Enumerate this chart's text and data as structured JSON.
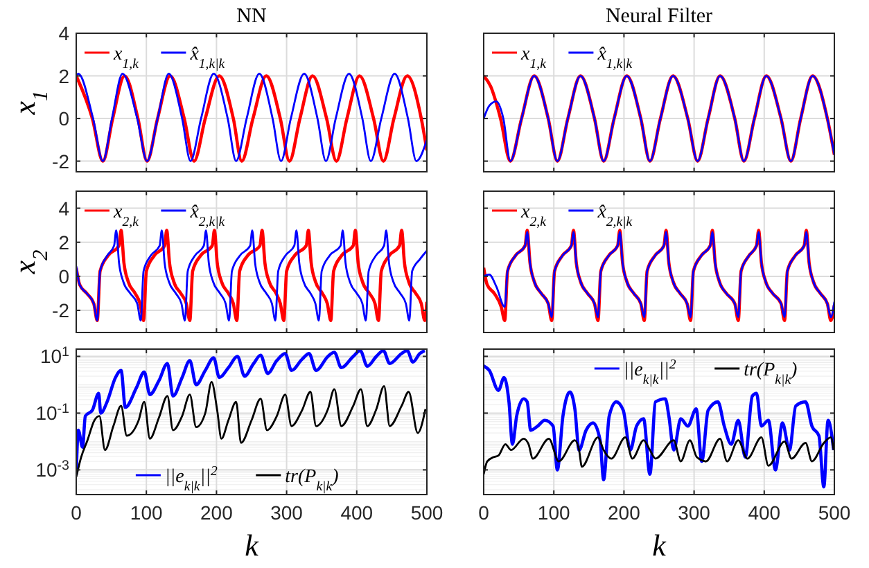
{
  "chart_data": [
    {
      "type": "line",
      "title": "NN",
      "ylabel": "x$_{1}$",
      "xlim": [
        0,
        500
      ],
      "xticks": [
        0,
        100,
        200,
        300,
        400,
        500
      ],
      "ylim": [
        -2.5,
        4
      ],
      "yticks": [
        -2,
        0,
        2,
        4
      ],
      "grid": true,
      "legend": "top left",
      "tick_labels": "y",
      "series": [
        {
          "name": "x$_{1,k}$",
          "color": "#ff0000",
          "x": [
            0,
            23,
            38,
            52,
            69,
            88,
            101,
            116,
            134,
            154,
            168,
            184,
            204,
            224,
            236,
            252,
            271,
            291,
            304,
            319,
            337,
            357,
            371,
            386,
            404,
            424,
            438,
            453,
            472,
            492,
            500
          ],
          "values": [
            2,
            0,
            -2,
            0,
            2,
            0,
            -2,
            0,
            2,
            0,
            -2,
            0,
            2,
            0,
            -2,
            0,
            2,
            0,
            -2,
            0,
            2,
            0,
            -2,
            0,
            2,
            0,
            -2,
            0,
            2,
            0,
            -1.5
          ]
        },
        {
          "name": "x̂$_{1,k|k}$",
          "color": "#0000ff",
          "x": [
            0,
            3,
            24,
            38,
            51,
            66,
            87,
            101,
            116,
            132,
            151,
            163,
            178,
            196,
            216,
            228,
            243,
            261,
            280,
            292,
            306,
            325,
            344,
            356,
            370,
            389,
            408,
            420,
            435,
            454,
            473,
            485,
            500
          ],
          "values": [
            2,
            2.1,
            0,
            -2,
            0,
            2.1,
            0,
            -2,
            0,
            2.1,
            0,
            -2,
            0,
            2.1,
            0,
            -2,
            0,
            2.1,
            0,
            -2,
            0,
            2.1,
            0,
            -2,
            0,
            2.1,
            0,
            -2,
            0,
            2.1,
            0,
            -2,
            -1
          ]
        }
      ]
    },
    {
      "type": "line",
      "title": "Neural Filter",
      "xlim": [
        0,
        500
      ],
      "xticks": [
        0,
        100,
        200,
        300,
        400,
        500
      ],
      "ylim": [
        -2.5,
        4
      ],
      "yticks": [
        -2,
        0,
        2,
        4
      ],
      "grid": true,
      "legend": "top left",
      "tick_labels": false,
      "series": [
        {
          "name": "x$_{1,k}$",
          "color": "#ff0000",
          "x": [
            0,
            10,
            24,
            38,
            54,
            72,
            92,
            105,
            120,
            138,
            158,
            171,
            186,
            204,
            224,
            237,
            252,
            270,
            291,
            305,
            320,
            337,
            358,
            371,
            386,
            403,
            424,
            438,
            452,
            469,
            490,
            500
          ],
          "values": [
            2,
            1.5,
            0,
            -2,
            0,
            2,
            0,
            -2,
            0,
            2,
            0,
            -2,
            0,
            2,
            0,
            -2,
            0,
            2,
            0,
            -2,
            0,
            2,
            0,
            -2,
            0,
            2,
            0,
            -2,
            0,
            2,
            0,
            -1.7
          ]
        },
        {
          "name": "x̂$_{1,k|k}$",
          "color": "#0000ff",
          "x": [
            0,
            8,
            18,
            28,
            38,
            54,
            72,
            92,
            105,
            120,
            138,
            158,
            171,
            186,
            204,
            224,
            237,
            252,
            270,
            291,
            305,
            320,
            337,
            358,
            371,
            386,
            403,
            424,
            438,
            452,
            469,
            490,
            500
          ],
          "values": [
            0,
            0.6,
            0.8,
            0,
            -2,
            0,
            2,
            0,
            -2,
            0,
            2,
            0,
            -2,
            0,
            2,
            0,
            -2,
            0,
            2,
            0,
            -2,
            0,
            2,
            0,
            -2,
            0,
            2,
            0,
            -2,
            0,
            2,
            0,
            -1.7
          ]
        }
      ]
    },
    {
      "type": "line",
      "ylabel": "x$_{2}$",
      "xlim": [
        0,
        500
      ],
      "xticks": [
        0,
        100,
        200,
        300,
        400,
        500
      ],
      "ylim": [
        -3.3,
        5
      ],
      "yticks": [
        -2,
        0,
        2,
        4
      ],
      "grid": true,
      "legend": "top left",
      "tick_labels": "y",
      "series": [
        {
          "name": "x$_{2,k}$",
          "color": "#ff0000",
          "x": [
            0,
            5,
            15,
            25,
            30,
            34,
            45,
            61,
            64,
            68,
            74,
            84,
            91,
            96,
            100,
            111,
            126,
            129,
            133,
            139,
            149,
            157,
            162,
            166,
            177,
            194,
            197,
            201,
            207,
            217,
            224,
            229,
            233,
            244,
            262,
            265,
            269,
            275,
            285,
            291,
            296,
            300,
            311,
            328,
            331,
            335,
            341,
            351,
            358,
            363,
            367,
            378,
            395,
            398,
            402,
            408,
            418,
            426,
            431,
            435,
            446,
            461,
            464,
            468,
            474,
            484,
            492,
            497,
            500
          ],
          "values": [
            0.5,
            -0.5,
            -1,
            -1.6,
            -2.6,
            0.3,
            1.2,
            1.8,
            2.7,
            0.8,
            -0.3,
            -1,
            -1.6,
            -2.6,
            0.3,
            1.2,
            1.8,
            2.7,
            0.8,
            -0.3,
            -1,
            -1.6,
            -2.6,
            0.3,
            1.2,
            1.8,
            2.7,
            0.8,
            -0.3,
            -1,
            -1.6,
            -2.6,
            0.3,
            1.2,
            1.8,
            2.7,
            0.8,
            -0.3,
            -1,
            -1.6,
            -2.6,
            0.3,
            1.2,
            1.8,
            2.7,
            0.8,
            -0.3,
            -1,
            -1.6,
            -2.6,
            0.3,
            1.2,
            1.8,
            2.7,
            0.8,
            -0.3,
            -1,
            -1.6,
            -2.6,
            0.3,
            1.2,
            1.8,
            2.7,
            0.8,
            -0.3,
            -1,
            -1.6,
            -2.6,
            -1.5
          ]
        },
        {
          "name": "x̂$_{2,k|k}$",
          "color": "#0000ff",
          "x": [
            0,
            5,
            15,
            25,
            30,
            34,
            44,
            54,
            57,
            61,
            67,
            77,
            87,
            92,
            96,
            106,
            119,
            122,
            126,
            132,
            142,
            150,
            155,
            159,
            169,
            182,
            185,
            189,
            195,
            205,
            213,
            218,
            222,
            233,
            248,
            251,
            255,
            261,
            271,
            279,
            284,
            288,
            298,
            311,
            314,
            318,
            324,
            334,
            341,
            346,
            350,
            361,
            377,
            380,
            384,
            390,
            400,
            408,
            413,
            417,
            427,
            439,
            442,
            446,
            452,
            462,
            470,
            475,
            479,
            490,
            500
          ],
          "values": [
            0.6,
            -0.5,
            -1,
            -1.6,
            -2.6,
            0.3,
            1.2,
            1.8,
            2.7,
            0.8,
            -0.3,
            -1,
            -1.6,
            -2.6,
            0.3,
            1.2,
            1.8,
            2.7,
            0.8,
            -0.3,
            -1,
            -1.6,
            -2.6,
            0.3,
            1.2,
            1.8,
            2.7,
            0.8,
            -0.3,
            -1,
            -1.6,
            -2.6,
            0.3,
            1.2,
            1.8,
            2.7,
            0.8,
            -0.3,
            -1,
            -1.6,
            -2.6,
            0.3,
            1.2,
            1.8,
            2.7,
            0.8,
            -0.3,
            -1,
            -1.6,
            -2.6,
            0.3,
            1.2,
            1.8,
            2.7,
            0.8,
            -0.3,
            -1,
            -1.6,
            -2.6,
            0.3,
            1.2,
            1.8,
            2.7,
            0.8,
            -0.3,
            -1,
            -1.6,
            -2.6,
            0.3,
            1,
            1.5
          ]
        }
      ]
    },
    {
      "type": "line",
      "xlim": [
        0,
        500
      ],
      "xticks": [
        0,
        100,
        200,
        300,
        400,
        500
      ],
      "ylim": [
        -3.3,
        5
      ],
      "yticks": [
        -2,
        0,
        2,
        4
      ],
      "grid": true,
      "legend": "top left",
      "tick_labels": false,
      "series": [
        {
          "name": "x$_{2,k}$",
          "color": "#ff0000",
          "x": [
            0,
            5,
            15,
            25,
            30,
            34,
            45,
            59,
            62,
            66,
            72,
            82,
            92,
            97,
            101,
            112,
            125,
            128,
            132,
            138,
            148,
            158,
            163,
            167,
            178,
            191,
            194,
            198,
            204,
            214,
            224,
            229,
            233,
            244,
            257,
            260,
            264,
            270,
            280,
            290,
            295,
            299,
            310,
            323,
            326,
            330,
            336,
            346,
            358,
            363,
            367,
            378,
            389,
            392,
            396,
            402,
            412,
            424,
            429,
            433,
            444,
            457,
            460,
            464,
            470,
            480,
            490,
            495,
            500
          ],
          "values": [
            0.5,
            -0.5,
            -1,
            -1.8,
            -2.6,
            0.3,
            1.2,
            1.8,
            2.7,
            0.8,
            -0.3,
            -1,
            -1.6,
            -2.6,
            0.3,
            1.2,
            1.8,
            2.7,
            0.8,
            -0.3,
            -1,
            -1.6,
            -2.6,
            0.3,
            1.2,
            1.8,
            2.7,
            0.8,
            -0.3,
            -1,
            -1.6,
            -2.6,
            0.3,
            1.2,
            1.8,
            2.7,
            0.8,
            -0.3,
            -1,
            -1.6,
            -2.6,
            0.3,
            1.2,
            1.8,
            2.7,
            0.8,
            -0.3,
            -1,
            -1.6,
            -2.6,
            0.3,
            1.2,
            1.8,
            2.7,
            0.8,
            -0.3,
            -1,
            -1.6,
            -2.6,
            0.3,
            1.2,
            1.8,
            2.7,
            0.8,
            -0.3,
            -1,
            -1.6,
            -2.6,
            -1.7
          ]
        },
        {
          "name": "x̂$_{2,k|k}$",
          "color": "#0000ff",
          "x": [
            0,
            8,
            18,
            30,
            34,
            45,
            59,
            62,
            66,
            72,
            82,
            92,
            97,
            101,
            112,
            125,
            128,
            132,
            138,
            148,
            158,
            163,
            167,
            178,
            191,
            194,
            198,
            204,
            214,
            224,
            229,
            233,
            244,
            257,
            260,
            264,
            270,
            280,
            290,
            295,
            299,
            310,
            323,
            326,
            330,
            336,
            346,
            358,
            363,
            367,
            378,
            389,
            392,
            396,
            402,
            412,
            424,
            429,
            433,
            444,
            457,
            460,
            464,
            470,
            480,
            490,
            495,
            500
          ],
          "values": [
            0,
            0.1,
            -0.6,
            -1.8,
            0.3,
            1.2,
            1.8,
            2.6,
            0.8,
            -0.3,
            -1,
            -1.6,
            -2.4,
            0.3,
            1.2,
            1.8,
            2.6,
            0.8,
            -0.3,
            -1,
            -1.6,
            -2.4,
            0.3,
            1.2,
            1.8,
            2.6,
            0.8,
            -0.3,
            -1,
            -1.6,
            -2.4,
            0.3,
            1.2,
            1.8,
            2.6,
            0.8,
            -0.3,
            -1,
            -1.6,
            -2.4,
            0.3,
            1.2,
            1.8,
            2.6,
            0.8,
            -0.3,
            -1,
            -1.6,
            -2.4,
            0.3,
            1.2,
            1.8,
            2.6,
            0.8,
            -0.3,
            -1,
            -1.6,
            -2.4,
            0.3,
            1.2,
            1.8,
            2.6,
            0.8,
            -0.3,
            -1,
            -1.6,
            -2.4,
            -1.5
          ]
        }
      ]
    },
    {
      "type": "line",
      "xlabel": "k",
      "xlim": [
        0,
        500
      ],
      "xticks": [
        0,
        100,
        200,
        300,
        400,
        500
      ],
      "ylim": [
        0.000135,
        18
      ],
      "yticks": [
        {
          "value": 0.001,
          "label": "10$^{-3}$"
        },
        {
          "value": 0.1,
          "label": "10$^{-1}$"
        },
        {
          "value": 10,
          "label": "10$^{1}$"
        }
      ],
      "log": "y",
      "grid": true,
      "legend": "bottom",
      "series": [
        {
          "name": "||e$_{k|k}$||$^{2}$",
          "color": "#0000ff",
          "x": [
            0,
            3,
            9,
            13,
            23,
            32,
            35,
            44,
            56,
            64,
            70,
            86,
            97,
            105,
            118,
            130,
            138,
            151,
            162,
            171,
            184,
            196,
            204,
            217,
            230,
            240,
            253,
            263,
            273,
            286,
            298,
            307,
            322,
            332,
            342,
            359,
            368,
            378,
            395,
            405,
            415,
            428,
            438,
            447,
            464,
            472,
            480,
            490,
            497
          ],
          "values": [
            0.00068,
            0.025,
            0.0063,
            0.079,
            0.126,
            0.5,
            0.1,
            0.25,
            1.8,
            3.2,
            0.16,
            0.8,
            2.8,
            0.45,
            1.4,
            5.6,
            0.4,
            1.8,
            7.1,
            1,
            3.2,
            8.9,
            1.8,
            4,
            10,
            2,
            5.6,
            11,
            2.5,
            7.1,
            12.6,
            3.2,
            7.9,
            12.6,
            3.2,
            10,
            14,
            4,
            10,
            16,
            4.5,
            10,
            16,
            5.6,
            12.6,
            16,
            6.3,
            12.6,
            16
          ]
        },
        {
          "name": "tr(P$_{k|k}$)",
          "color": "#000000",
          "x": [
            0,
            7,
            16,
            26,
            33,
            41,
            53,
            64,
            72,
            89,
            97,
            105,
            118,
            130,
            138,
            151,
            162,
            171,
            184,
            193,
            201,
            207,
            217,
            228,
            235,
            250,
            263,
            272,
            286,
            298,
            307,
            322,
            334,
            342,
            359,
            368,
            378,
            395,
            406,
            415,
            428,
            439,
            447,
            464,
            474,
            487,
            498
          ],
          "values": [
            0.00056,
            0.0028,
            0.011,
            0.056,
            0.079,
            0.005,
            0.035,
            0.18,
            0.016,
            0.056,
            0.25,
            0.0126,
            0.07,
            0.4,
            0.025,
            0.079,
            0.45,
            0.032,
            0.1,
            1.26,
            0.126,
            0.0126,
            0.056,
            0.25,
            0.0089,
            0.056,
            0.32,
            0.025,
            0.079,
            0.45,
            0.035,
            0.126,
            0.56,
            0.035,
            0.14,
            0.7,
            0.035,
            0.18,
            0.7,
            0.035,
            0.14,
            0.9,
            0.035,
            0.18,
            0.56,
            0.02,
            0.14
          ]
        }
      ]
    },
    {
      "type": "line",
      "xlabel": "k",
      "xlim": [
        0,
        500
      ],
      "xticks": [
        0,
        100,
        200,
        300,
        400,
        500
      ],
      "ylim": [
        0.000135,
        18
      ],
      "yticks": [
        {
          "value": 0.001,
          "label": null
        },
        {
          "value": 0.1,
          "label": null
        },
        {
          "value": 10,
          "label": null
        }
      ],
      "log": "y",
      "grid": true,
      "legend": "top right",
      "tick_labels": "x",
      "series": [
        {
          "name": "||e$_{k|k}$||$^{2}$",
          "color": "#0000ff",
          "x": [
            0,
            8,
            21,
            29,
            36,
            41,
            47,
            57,
            62,
            67,
            77,
            87,
            99,
            105,
            113,
            123,
            130,
            136,
            146,
            156,
            166,
            171,
            179,
            189,
            199,
            209,
            218,
            228,
            237,
            245,
            259,
            264,
            271,
            281,
            291,
            303,
            311,
            320,
            334,
            343,
            353,
            363,
            373,
            383,
            389,
            396,
            406,
            416,
            426,
            436,
            445,
            459,
            468,
            478,
            485,
            491,
            499
          ],
          "values": [
            4.6,
            3.2,
            0.63,
            1.8,
            0.25,
            0.008,
            0.079,
            0.32,
            0.25,
            0.025,
            0.035,
            0.056,
            0.035,
            0.001,
            0.079,
            0.56,
            0.14,
            0.005,
            0.025,
            0.045,
            0.011,
            0.00045,
            0.079,
            0.25,
            0.126,
            0.005,
            0.035,
            0.063,
            0.0007,
            0.25,
            0.32,
            0.079,
            0.005,
            0.063,
            0.035,
            0.14,
            0.002,
            0.126,
            0.25,
            0.035,
            0.008,
            0.056,
            0.0028,
            0.4,
            0.5,
            0.035,
            0.056,
            0.001,
            0.045,
            0.005,
            0.18,
            0.25,
            0.035,
            0.016,
            0.00025,
            0.056,
            0.005
          ]
        },
        {
          "name": "tr(P$_{k|k}$)",
          "color": "#000000",
          "x": [
            0,
            5,
            14,
            21,
            31,
            39,
            57,
            64,
            70,
            93,
            107,
            130,
            136,
            140,
            163,
            171,
            182,
            202,
            212,
            228,
            237,
            245,
            271,
            281,
            294,
            304,
            317,
            337,
            347,
            363,
            376,
            396,
            406,
            429,
            439,
            459,
            468,
            485,
            495,
            499
          ],
          "values": [
            0.0007,
            0.002,
            0.0028,
            0.0032,
            0.008,
            0.005,
            0.0126,
            0.008,
            0.0025,
            0.0126,
            0.002,
            0.011,
            0.005,
            0.0013,
            0.014,
            0.005,
            0.0025,
            0.014,
            0.0025,
            0.011,
            0.005,
            0.0025,
            0.011,
            0.002,
            0.011,
            0.0028,
            0.002,
            0.0126,
            0.002,
            0.011,
            0.0025,
            0.014,
            0.0014,
            0.01,
            0.0025,
            0.0089,
            0.002,
            0.0089,
            0.014,
            0.005
          ]
        }
      ]
    }
  ]
}
